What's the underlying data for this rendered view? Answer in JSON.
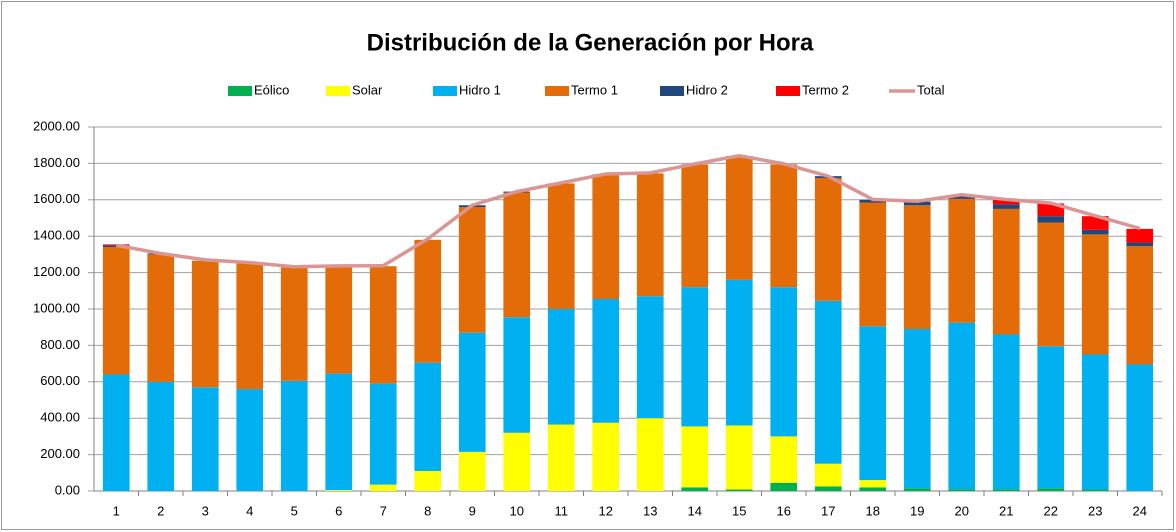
{
  "chart_data": {
    "type": "bar",
    "stacked": true,
    "title": "Distribución de la Generación por Hora",
    "categories": [
      "1",
      "2",
      "3",
      "4",
      "5",
      "6",
      "7",
      "8",
      "9",
      "10",
      "11",
      "12",
      "13",
      "14",
      "15",
      "16",
      "17",
      "18",
      "19",
      "20",
      "21",
      "22",
      "23",
      "24"
    ],
    "series": [
      {
        "name": "Eólico",
        "color": "#00b050",
        "values": [
          0,
          0,
          0,
          0,
          0,
          0,
          0,
          0,
          0,
          0,
          0,
          0,
          0,
          20,
          8,
          45,
          25,
          20,
          15,
          10,
          10,
          15,
          8,
          0
        ]
      },
      {
        "name": "Solar",
        "color": "#ffff00",
        "values": [
          0,
          0,
          0,
          0,
          0,
          5,
          35,
          110,
          215,
          320,
          365,
          375,
          400,
          335,
          352,
          255,
          125,
          40,
          0,
          0,
          0,
          0,
          0,
          0
        ]
      },
      {
        "name": "Hidro 1",
        "color": "#00b0f0",
        "values": [
          640,
          600,
          570,
          560,
          605,
          640,
          555,
          595,
          655,
          635,
          635,
          680,
          670,
          765,
          800,
          820,
          895,
          845,
          875,
          915,
          850,
          780,
          742,
          695
        ]
      },
      {
        "name": "Termo 1",
        "color": "#e36c09",
        "values": [
          700,
          700,
          695,
          690,
          625,
          590,
          645,
          675,
          690,
          685,
          690,
          685,
          675,
          675,
          680,
          675,
          675,
          680,
          680,
          680,
          690,
          680,
          660,
          650
        ]
      },
      {
        "name": "Hidro 2",
        "color": "#1f497d",
        "values": [
          10,
          5,
          0,
          0,
          0,
          0,
          0,
          0,
          10,
          5,
          0,
          0,
          0,
          0,
          0,
          0,
          10,
          15,
          20,
          15,
          25,
          35,
          25,
          20
        ]
      },
      {
        "name": "Termo 2",
        "color": "#ff0000",
        "values": [
          5,
          0,
          0,
          0,
          0,
          0,
          0,
          0,
          0,
          0,
          0,
          0,
          0,
          0,
          0,
          0,
          0,
          0,
          0,
          0,
          25,
          70,
          75,
          75
        ]
      },
      {
        "name": "Total",
        "type": "line",
        "color": "#d99694",
        "values": [
          1350,
          1305,
          1270,
          1255,
          1232,
          1237,
          1238,
          1385,
          1570,
          1645,
          1693,
          1742,
          1748,
          1797,
          1842,
          1798,
          1730,
          1602,
          1592,
          1628,
          1602,
          1582,
          1512,
          1443
        ]
      }
    ],
    "ylim": [
      0,
      2000
    ],
    "yticks": [
      {
        "value": 0,
        "label": "0.00"
      },
      {
        "value": 200,
        "label": "200.00"
      },
      {
        "value": 400,
        "label": "400.00"
      },
      {
        "value": 600,
        "label": "600.00"
      },
      {
        "value": 800,
        "label": "800.00"
      },
      {
        "value": 1000,
        "label": "1000.00"
      },
      {
        "value": 1200,
        "label": "1200.00"
      },
      {
        "value": 1400,
        "label": "1400.00"
      },
      {
        "value": 1600,
        "label": "1600.00"
      },
      {
        "value": 1800,
        "label": "1800.00"
      },
      {
        "value": 2000,
        "label": "2000.00"
      }
    ],
    "grid": true,
    "legend": "top"
  }
}
